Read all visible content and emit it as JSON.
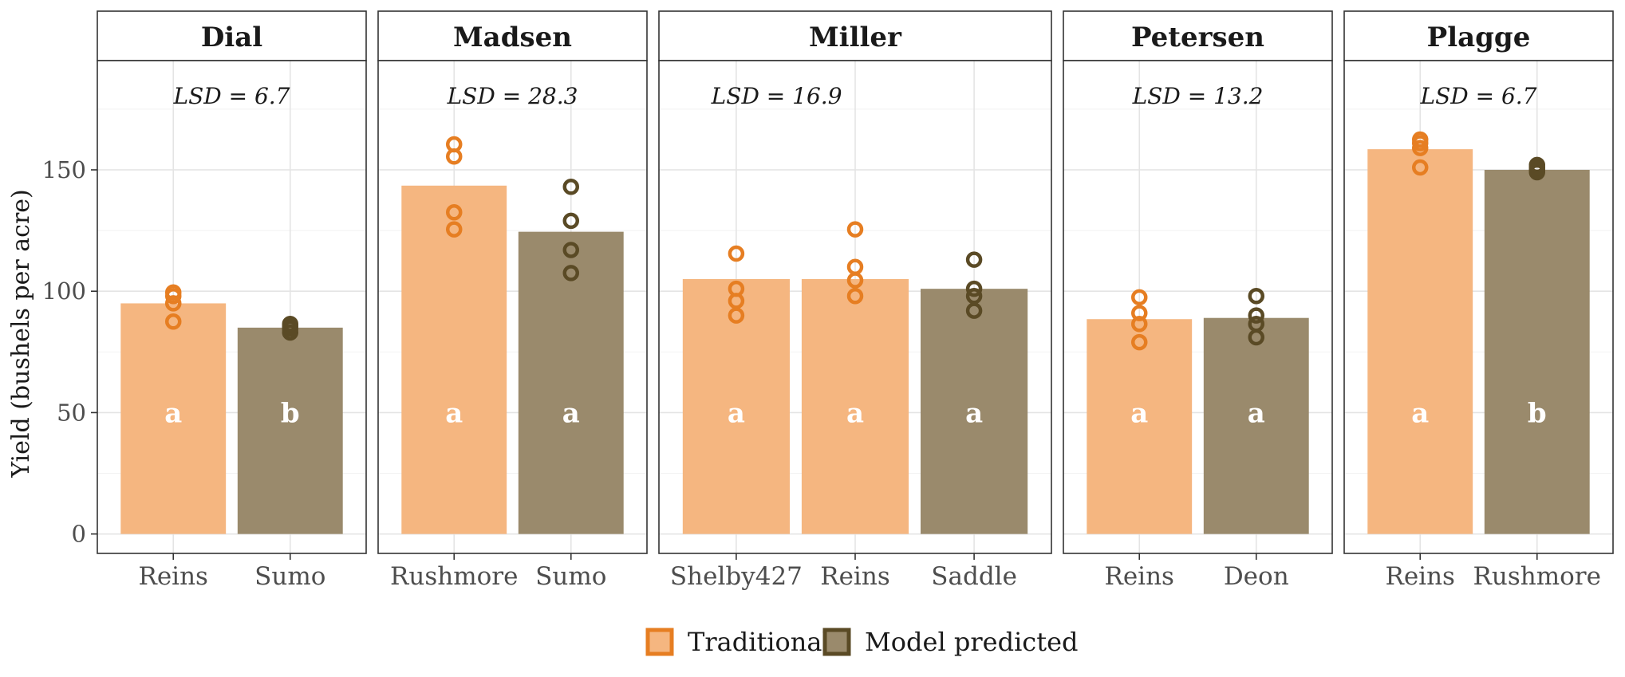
{
  "chart_data": {
    "type": "bar",
    "ylabel": "Yield (bushels per acre)",
    "ylim": [
      -8,
      195
    ],
    "yticks": [
      0,
      50,
      100,
      150
    ],
    "grid": true,
    "legend_position": "bottom",
    "legend": [
      {
        "label": "Traditional",
        "fill": "#f5b680",
        "stroke": "#e67e22"
      },
      {
        "label": "Model predicted",
        "fill": "#9a8a6c",
        "stroke": "#5a4a25"
      }
    ],
    "series_colors": {
      "Traditional": {
        "fill": "#f5b680",
        "point": "#e67e22"
      },
      "Model predicted": {
        "fill": "#9a8a6c",
        "point": "#5a4a25"
      }
    },
    "facets": [
      {
        "name": "Dial",
        "lsd": "LSD = 6.7",
        "bars": [
          {
            "category": "Reins",
            "group": "Traditional",
            "value": 95,
            "letter": "a",
            "points": [
              87.5,
              95,
              98,
              99.5
            ]
          },
          {
            "category": "Sumo",
            "group": "Model predicted",
            "value": 85,
            "letter": "b",
            "points": [
              83,
              84.5,
              85.5,
              86.5
            ]
          }
        ]
      },
      {
        "name": "Madsen",
        "lsd": "LSD = 28.3",
        "bars": [
          {
            "category": "Rushmore",
            "group": "Traditional",
            "value": 143.5,
            "letter": "a",
            "points": [
              125.5,
              132.5,
              155.5,
              160.5
            ]
          },
          {
            "category": "Sumo",
            "group": "Model predicted",
            "value": 124.5,
            "letter": "a",
            "points": [
              107.5,
              117,
              129,
              143
            ]
          }
        ]
      },
      {
        "name": "Miller",
        "lsd": "LSD = 16.9",
        "bars": [
          {
            "category": "Shelby427",
            "group": "Traditional",
            "value": 105,
            "letter": "a",
            "points": [
              90,
              96,
              101,
              115.5
            ]
          },
          {
            "category": "Reins",
            "group": "Traditional",
            "value": 105,
            "letter": "a",
            "points": [
              98,
              104.5,
              110,
              125.5
            ]
          },
          {
            "category": "Saddle",
            "group": "Model predicted",
            "value": 101,
            "letter": "a",
            "points": [
              92,
              98,
              101,
              113
            ]
          }
        ]
      },
      {
        "name": "Petersen",
        "lsd": "LSD = 13.2",
        "bars": [
          {
            "category": "Reins",
            "group": "Traditional",
            "value": 88.5,
            "letter": "a",
            "points": [
              79,
              86.5,
              91,
              97.5
            ]
          },
          {
            "category": "Deon",
            "group": "Model predicted",
            "value": 89,
            "letter": "a",
            "points": [
              81,
              86.5,
              90,
              98
            ]
          }
        ]
      },
      {
        "name": "Plagge",
        "lsd": "LSD = 6.7",
        "bars": [
          {
            "category": "Reins",
            "group": "Traditional",
            "value": 158.5,
            "letter": "a",
            "points": [
              151,
              159,
              161,
              162.5
            ]
          },
          {
            "category": "Rushmore",
            "group": "Model predicted",
            "value": 150,
            "letter": "b",
            "points": [
              149,
              150,
              151,
              152
            ]
          }
        ]
      }
    ]
  }
}
